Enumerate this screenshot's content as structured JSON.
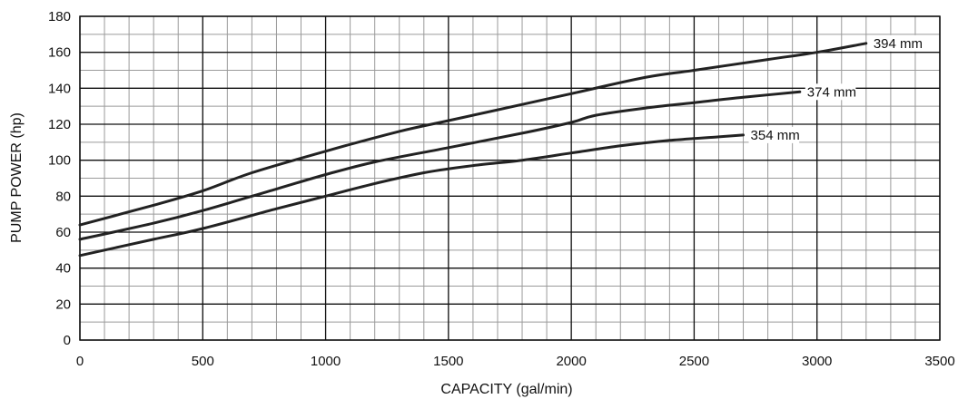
{
  "chart_data": {
    "type": "line",
    "title": "",
    "xlabel": "CAPACITY (gal/min)",
    "ylabel": "PUMP POWER (hp)",
    "xlim": [
      0,
      3500
    ],
    "ylim": [
      0,
      180
    ],
    "xticks": [
      0,
      500,
      1000,
      1500,
      2000,
      2500,
      3000,
      3500
    ],
    "yticks": [
      0,
      20,
      40,
      60,
      80,
      100,
      120,
      140,
      160,
      180
    ],
    "grid": true,
    "minor_grid": {
      "x_step": 100,
      "y_step": 10
    },
    "legend": "none",
    "series": [
      {
        "name": "394 mm",
        "x": [
          0,
          300,
          500,
          700,
          1000,
          1300,
          1500,
          1800,
          2000,
          2300,
          2500,
          2800,
          3000,
          3200
        ],
        "y": [
          64,
          75,
          83,
          93,
          105,
          116,
          122,
          131,
          137,
          146,
          150,
          156,
          160,
          165
        ]
      },
      {
        "name": "374 mm",
        "x": [
          0,
          300,
          500,
          800,
          1000,
          1200,
          1500,
          1800,
          2000,
          2100,
          2300,
          2500,
          2700,
          2930
        ],
        "y": [
          56,
          65,
          72,
          84,
          92,
          99,
          107,
          115,
          121,
          125,
          129,
          132,
          135,
          138
        ]
      },
      {
        "name": "354 mm",
        "x": [
          0,
          300,
          500,
          800,
          1000,
          1200,
          1400,
          1600,
          1800,
          2000,
          2200,
          2400,
          2600,
          2700
        ],
        "y": [
          47,
          56,
          62,
          73,
          80,
          87,
          93,
          97,
          100,
          104,
          108,
          111,
          113,
          114
        ]
      }
    ],
    "colors": {
      "line": "#222222",
      "minor_grid": "#9a9a9a",
      "major_grid": "#111111"
    }
  }
}
